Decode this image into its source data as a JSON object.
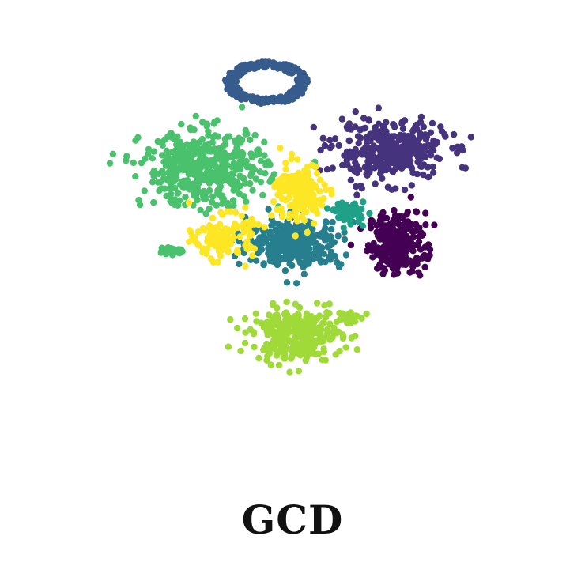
{
  "caption": "GCD",
  "chart_data": {
    "type": "scatter",
    "title": "",
    "xlabel": "",
    "ylabel": "",
    "axes_visible": false,
    "grid": false,
    "legend": "none",
    "xlim": [
      0,
      1
    ],
    "ylim": [
      0,
      1
    ],
    "clusters": [
      {
        "id": "c0",
        "color": "#440154",
        "n": 260,
        "cx": 0.72,
        "cy": 0.505,
        "sx": 0.048,
        "sy": 0.058,
        "shape": "blob"
      },
      {
        "id": "c1",
        "color": "#46337e",
        "n": 360,
        "cx": 0.705,
        "cy": 0.72,
        "sx": 0.095,
        "sy": 0.055,
        "shape": "blob"
      },
      {
        "id": "c2",
        "color": "#365c8d",
        "n": 260,
        "cx": 0.445,
        "cy": 0.88,
        "sx": 0.08,
        "sy": 0.045,
        "shape": "ring"
      },
      {
        "id": "c3",
        "color": "#277f8e",
        "n": 330,
        "cx": 0.505,
        "cy": 0.505,
        "sx": 0.08,
        "sy": 0.045,
        "shape": "blob"
      },
      {
        "id": "c4",
        "color": "#1fa187",
        "n": 60,
        "cx": 0.62,
        "cy": 0.575,
        "sx": 0.025,
        "sy": 0.02,
        "shape": "blob"
      },
      {
        "id": "c5",
        "color": "#4ac16d",
        "n": 470,
        "cx": 0.315,
        "cy": 0.68,
        "sx": 0.105,
        "sy": 0.07,
        "shape": "blob"
      },
      {
        "id": "c6",
        "color": "#4ac16d",
        "n": 40,
        "cx": 0.245,
        "cy": 0.487,
        "sx": 0.02,
        "sy": 0.008,
        "shape": "blob"
      },
      {
        "id": "c7",
        "color": "#a0da39",
        "n": 300,
        "cx": 0.51,
        "cy": 0.29,
        "sx": 0.075,
        "sy": 0.048,
        "shape": "blob"
      },
      {
        "id": "c8",
        "color": "#a0da39",
        "n": 40,
        "cx": 0.615,
        "cy": 0.33,
        "sx": 0.02,
        "sy": 0.012,
        "shape": "blob"
      },
      {
        "id": "c9",
        "color": "#fde725",
        "n": 170,
        "cx": 0.515,
        "cy": 0.62,
        "sx": 0.042,
        "sy": 0.058,
        "shape": "blob"
      },
      {
        "id": "c10",
        "color": "#fde725",
        "n": 130,
        "cx": 0.355,
        "cy": 0.52,
        "sx": 0.05,
        "sy": 0.04,
        "shape": "blob"
      }
    ]
  }
}
